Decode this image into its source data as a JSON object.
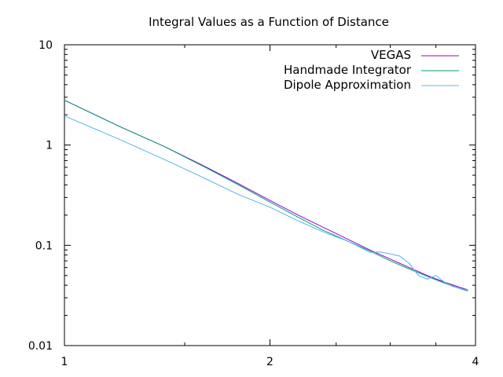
{
  "chart_data": {
    "type": "line",
    "title": "Integral Values as a Function of Distance",
    "xlabel": "",
    "ylabel": "",
    "x_scale": "log",
    "y_scale": "log",
    "xlim": [
      1,
      4
    ],
    "ylim": [
      0.01,
      10
    ],
    "x_ticks": [
      {
        "value": 1,
        "label": "1"
      },
      {
        "value": 2,
        "label": "2"
      },
      {
        "value": 4,
        "label": "4"
      }
    ],
    "y_ticks": [
      {
        "value": 0.01,
        "label": "0.01"
      },
      {
        "value": 0.1,
        "label": "0.1"
      },
      {
        "value": 1,
        "label": "1"
      },
      {
        "value": 10,
        "label": "10"
      }
    ],
    "grid": false,
    "legend_position": "top-right",
    "series": [
      {
        "name": "VEGAS",
        "color": "#9400d3",
        "x": [
          1.0,
          1.2,
          1.4,
          1.6,
          1.8,
          2.0,
          2.2,
          2.4,
          2.6,
          2.8,
          3.0,
          3.2,
          3.4,
          3.6,
          3.8,
          3.9
        ],
        "y": [
          2.8,
          1.55,
          0.97,
          0.62,
          0.41,
          0.28,
          0.2,
          0.15,
          0.115,
          0.09,
          0.073,
          0.06,
          0.05,
          0.043,
          0.038,
          0.036
        ]
      },
      {
        "name": "Handmade Integrator",
        "color": "#009e73",
        "x": [
          1.0,
          1.2,
          1.4,
          1.6,
          1.8,
          2.0,
          2.2,
          2.4,
          2.6,
          2.8,
          3.0,
          3.2,
          3.4,
          3.6,
          3.8,
          3.9
        ],
        "y": [
          2.8,
          1.55,
          0.97,
          0.61,
          0.4,
          0.27,
          0.19,
          0.14,
          0.11,
          0.088,
          0.07,
          0.058,
          0.049,
          0.042,
          0.037,
          0.035
        ]
      },
      {
        "name": "Dipole Approximation",
        "color": "#56b4e9",
        "x": [
          1.0,
          1.2,
          1.4,
          1.6,
          1.8,
          2.0,
          2.2,
          2.4,
          2.6,
          2.7,
          2.8,
          2.9,
          3.0,
          3.1,
          3.2,
          3.3,
          3.4,
          3.5,
          3.6,
          3.7,
          3.8,
          3.9
        ],
        "y": [
          1.95,
          1.15,
          0.72,
          0.47,
          0.32,
          0.24,
          0.175,
          0.135,
          0.11,
          0.097,
          0.085,
          0.086,
          0.082,
          0.078,
          0.066,
          0.05,
          0.046,
          0.05,
          0.043,
          0.039,
          0.037,
          0.036
        ]
      }
    ]
  }
}
